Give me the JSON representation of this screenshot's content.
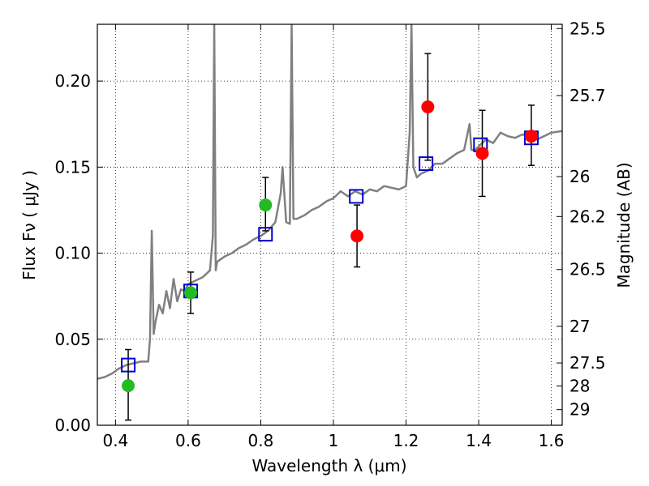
{
  "chart_data": {
    "type": "scatter",
    "xlabel": "Wavelength  λ (μm)",
    "ylabel": "Flux  Fν  ( μJy )",
    "y2label": "Magnitude (AB)",
    "xlim": [
      0.35,
      1.63
    ],
    "ylim": [
      0.0,
      0.233
    ],
    "grid": "dotted",
    "x_ticks": [
      0.4,
      0.6,
      0.8,
      1.0,
      1.2,
      1.4,
      1.6
    ],
    "x_tick_labels": [
      "0.4",
      "0.6",
      "0.8",
      "1",
      "1.2",
      "1.4",
      "1.6"
    ],
    "y_ticks": [
      0.0,
      0.05,
      0.1,
      0.15,
      0.2
    ],
    "y_tick_labels": [
      "0.00",
      "0.05",
      "0.10",
      "0.15",
      "0.20"
    ],
    "right_ticks": [
      {
        "label": "25.5",
        "flux": 0.2305
      },
      {
        "label": "25.7",
        "flux": 0.1916
      },
      {
        "label": "26",
        "flux": 0.1445
      },
      {
        "label": "26.2",
        "flux": 0.1213
      },
      {
        "label": "26.5",
        "flux": 0.0905
      },
      {
        "label": "27",
        "flux": 0.0575
      },
      {
        "label": "27.5",
        "flux": 0.0362
      },
      {
        "label": "28",
        "flux": 0.0228
      },
      {
        "label": "29",
        "flux": 0.0091
      }
    ],
    "series": [
      {
        "kind": "line",
        "color": "#808080",
        "x": [
          0.35,
          0.37,
          0.39,
          0.41,
          0.43,
          0.45,
          0.47,
          0.49,
          0.495,
          0.5,
          0.505,
          0.51,
          0.52,
          0.53,
          0.54,
          0.55,
          0.56,
          0.57,
          0.58,
          0.59,
          0.6,
          0.62,
          0.64,
          0.66,
          0.668,
          0.672,
          0.676,
          0.68,
          0.7,
          0.72,
          0.74,
          0.76,
          0.78,
          0.8,
          0.82,
          0.84,
          0.855,
          0.86,
          0.87,
          0.88,
          0.885,
          0.89,
          0.9,
          0.92,
          0.94,
          0.96,
          0.98,
          1.0,
          1.02,
          1.04,
          1.06,
          1.08,
          1.1,
          1.12,
          1.14,
          1.16,
          1.18,
          1.2,
          1.21,
          1.215,
          1.22,
          1.23,
          1.24,
          1.26,
          1.28,
          1.3,
          1.32,
          1.34,
          1.36,
          1.375,
          1.38,
          1.39,
          1.4,
          1.42,
          1.44,
          1.46,
          1.48,
          1.5,
          1.52,
          1.54,
          1.56,
          1.58,
          1.6,
          1.63
        ],
        "y": [
          0.027,
          0.028,
          0.03,
          0.033,
          0.035,
          0.036,
          0.037,
          0.037,
          0.05,
          0.113,
          0.053,
          0.06,
          0.07,
          0.065,
          0.078,
          0.068,
          0.085,
          0.072,
          0.079,
          0.078,
          0.082,
          0.084,
          0.086,
          0.09,
          0.11,
          0.233,
          0.09,
          0.095,
          0.098,
          0.1,
          0.103,
          0.105,
          0.108,
          0.11,
          0.113,
          0.118,
          0.135,
          0.15,
          0.118,
          0.117,
          0.233,
          0.12,
          0.12,
          0.122,
          0.125,
          0.127,
          0.13,
          0.132,
          0.136,
          0.133,
          0.136,
          0.134,
          0.137,
          0.136,
          0.139,
          0.138,
          0.137,
          0.139,
          0.17,
          0.233,
          0.15,
          0.144,
          0.146,
          0.148,
          0.152,
          0.152,
          0.155,
          0.158,
          0.16,
          0.175,
          0.16,
          0.16,
          0.162,
          0.166,
          0.164,
          0.17,
          0.168,
          0.167,
          0.169,
          0.168,
          0.166,
          0.168,
          0.17,
          0.171
        ]
      },
      {
        "kind": "open-square",
        "color": "#0000cc",
        "points": [
          [
            0.435,
            0.035
          ],
          [
            0.607,
            0.078
          ],
          [
            0.813,
            0.111
          ],
          [
            1.063,
            0.133
          ],
          [
            1.255,
            0.152
          ],
          [
            1.405,
            0.163
          ],
          [
            1.545,
            0.167
          ]
        ]
      },
      {
        "kind": "filled-circle",
        "color": "#22bb22",
        "points": [
          [
            0.435,
            0.023
          ],
          [
            0.607,
            0.077
          ],
          [
            0.813,
            0.128
          ]
        ]
      },
      {
        "kind": "filled-circle",
        "color": "#ff0000",
        "points": [
          [
            1.065,
            0.11
          ],
          [
            1.26,
            0.185
          ],
          [
            1.41,
            0.158
          ],
          [
            1.545,
            0.168
          ]
        ]
      },
      {
        "kind": "errorbar",
        "color": "#000000",
        "bars": [
          [
            0.435,
            0.003,
            0.044
          ],
          [
            0.607,
            0.065,
            0.089
          ],
          [
            0.813,
            0.113,
            0.144
          ],
          [
            1.065,
            0.092,
            0.128
          ],
          [
            1.26,
            0.154,
            0.216
          ],
          [
            1.41,
            0.133,
            0.183
          ],
          [
            1.545,
            0.151,
            0.186
          ]
        ]
      }
    ]
  }
}
